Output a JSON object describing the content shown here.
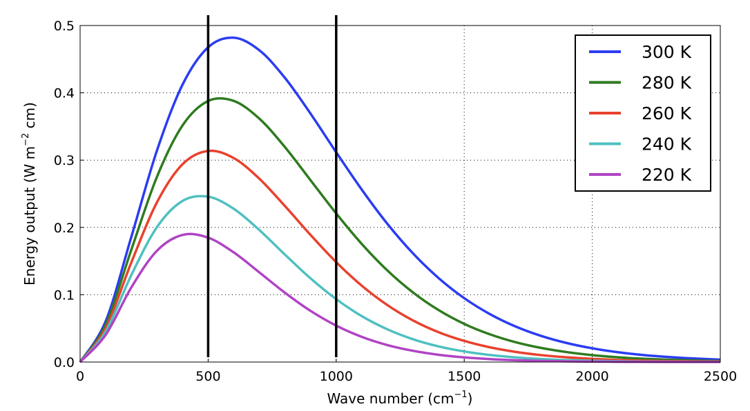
{
  "chart_data": {
    "type": "line",
    "title": "",
    "xlabel": "Wave number (cm",
    "xlabel_sup": "−1",
    "xlabel_end": ")",
    "ylabel": "Energy output (W m",
    "ylabel_sup": "−2",
    "ylabel_end": " cm)",
    "xlim": [
      0,
      2500
    ],
    "ylim": [
      0,
      0.5
    ],
    "xticks": [
      "0",
      "500",
      "1000",
      "1500",
      "2000",
      "2500"
    ],
    "yticks": [
      "0.0",
      "0.1",
      "0.2",
      "0.3",
      "0.4",
      "0.5"
    ],
    "grid": true,
    "legend_position": "top-right",
    "vertical_lines": [
      500,
      1000
    ],
    "vertical_line_color": "#000000",
    "x": [
      0,
      100,
      200,
      300,
      400,
      500,
      600,
      700,
      800,
      900,
      1000,
      1100,
      1200,
      1300,
      1400,
      1500,
      1600,
      1700,
      1800,
      1900,
      2000,
      2100,
      2200,
      2300,
      2400,
      2500
    ],
    "series": [
      {
        "name": "300 K",
        "color": "#2b3cf2",
        "values": [
          0,
          0.0608,
          0.186,
          0.3142,
          0.4122,
          0.4677,
          0.4819,
          0.4632,
          0.4221,
          0.369,
          0.3117,
          0.2561,
          0.2053,
          0.1614,
          0.1247,
          0.0949,
          0.0713,
          0.0529,
          0.0389,
          0.0283,
          0.0204,
          0.0146,
          0.0104,
          0.0074,
          0.0052,
          0.0036
        ]
      },
      {
        "name": "280 K",
        "color": "#2e7b1f",
        "values": [
          0,
          0.0557,
          0.1668,
          0.2751,
          0.3516,
          0.3879,
          0.388,
          0.3616,
          0.3193,
          0.2701,
          0.2208,
          0.1754,
          0.136,
          0.1034,
          0.0772,
          0.0567,
          0.0412,
          0.0295,
          0.021,
          0.0148,
          0.0103,
          0.0071,
          0.0049,
          0.0034,
          0.0023,
          0.0015
        ]
      },
      {
        "name": "260 K",
        "color": "#e8412d",
        "values": [
          0,
          0.0506,
          0.1479,
          0.2372,
          0.2939,
          0.3137,
          0.303,
          0.2724,
          0.2317,
          0.1888,
          0.1484,
          0.1134,
          0.0846,
          0.0618,
          0.0443,
          0.0314,
          0.0219,
          0.0151,
          0.0103,
          0.007,
          0.0047,
          0.0031,
          0.0021,
          0.0014,
          0.0009,
          0.0006
        ]
      },
      {
        "name": "240 K",
        "color": "#4fc0c0",
        "values": [
          0,
          0.0456,
          0.1292,
          0.2004,
          0.2394,
          0.2457,
          0.2277,
          0.1961,
          0.1596,
          0.1243,
          0.0935,
          0.0682,
          0.0486,
          0.0339,
          0.0232,
          0.0157,
          0.0105,
          0.0069,
          0.0045,
          0.0029,
          0.0019,
          0.0012,
          0.0007,
          0.0005,
          0.0003,
          0.0002
        ]
      },
      {
        "name": "220 K",
        "color": "#b043c4",
        "values": [
          0,
          0.0405,
          0.1109,
          0.1653,
          0.1889,
          0.1848,
          0.1629,
          0.1332,
          0.1029,
          0.076,
          0.0541,
          0.0374,
          0.0252,
          0.0167,
          0.0108,
          0.0069,
          0.0044,
          0.0027,
          0.0017,
          0.001,
          0.0006,
          0.0004,
          0.0002,
          0.0001,
          0.0001,
          0.0001
        ]
      }
    ]
  }
}
